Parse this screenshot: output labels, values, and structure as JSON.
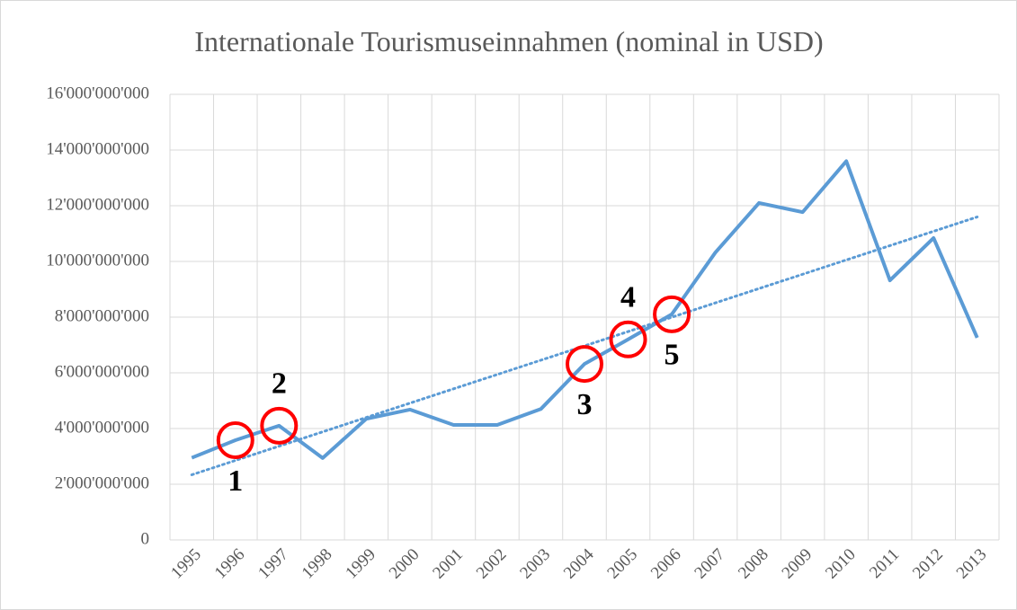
{
  "chart_data": {
    "type": "line",
    "title": "Internationale Tourismuseinnahmen (nominal in USD)",
    "categories": [
      "1995",
      "1996",
      "1997",
      "1998",
      "1999",
      "2000",
      "2001",
      "2002",
      "2003",
      "2004",
      "2005",
      "2006",
      "2007",
      "2008",
      "2009",
      "2010",
      "2011",
      "2012",
      "2013"
    ],
    "series": [
      {
        "color": "#5b9bd5",
        "values": [
          2950000000,
          3580000000,
          4100000000,
          2940000000,
          4350000000,
          4680000000,
          4130000000,
          4130000000,
          4700000000,
          6320000000,
          7200000000,
          8100000000,
          10320000000,
          12100000000,
          11770000000,
          13600000000,
          9320000000,
          10840000000,
          7260000000
        ]
      }
    ],
    "trendline": true,
    "ylim": [
      0,
      16000000000
    ],
    "yticks": [
      0,
      {
        "value": 2000000000,
        "label": "2'000'000'000"
      },
      {
        "value": 4000000000,
        "label": "4'000'000'000"
      },
      {
        "value": 6000000000,
        "label": "6'000'000'000"
      },
      {
        "value": 8000000000,
        "label": "8'000'000'000"
      },
      {
        "value": 10000000000,
        "label": "10'000'000'000"
      },
      {
        "value": 12000000000,
        "label": "12'000'000'000"
      },
      {
        "value": 14000000000,
        "label": "14'000'000'000"
      },
      {
        "value": 16000000000,
        "label": "16'000'000'000"
      }
    ],
    "grid": true,
    "annotations": [
      {
        "label": "1",
        "category": "1996",
        "position": "below"
      },
      {
        "label": "2",
        "category": "1997",
        "position": "above"
      },
      {
        "label": "3",
        "category": "2004",
        "position": "below"
      },
      {
        "label": "4",
        "category": "2005",
        "position": "above"
      },
      {
        "label": "5",
        "category": "2006",
        "position": "below"
      }
    ]
  }
}
